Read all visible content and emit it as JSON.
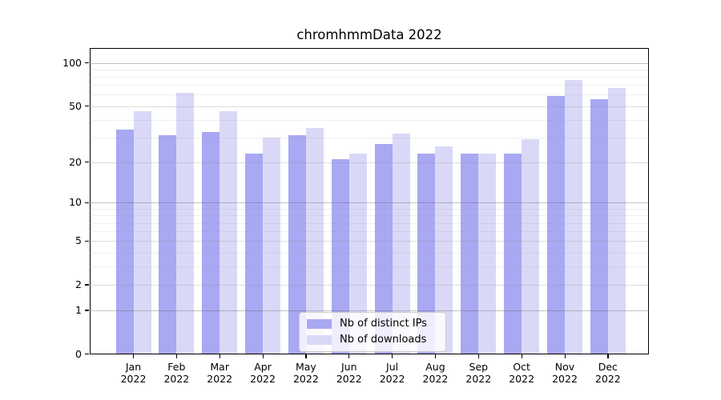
{
  "title": "chromhmmData 2022",
  "legend": {
    "items": [
      {
        "label": "Nb of distinct IPs",
        "color": "#a8a8f3"
      },
      {
        "label": "Nb of downloads",
        "color": "#d9d9f7"
      }
    ]
  },
  "chart_data": {
    "type": "bar",
    "title": "chromhmmData 2022",
    "categories": [
      "Jan",
      "Feb",
      "Mar",
      "Apr",
      "May",
      "Jun",
      "Jul",
      "Aug",
      "Sep",
      "Oct",
      "Nov",
      "Dec"
    ],
    "year": "2022",
    "series": [
      {
        "name": "Nb of distinct IPs",
        "color": "#a8a8f3",
        "values": [
          34,
          31,
          33,
          23,
          31,
          21,
          27,
          23,
          23,
          23,
          59,
          56
        ]
      },
      {
        "name": "Nb of downloads",
        "color": "#d9d9f7",
        "values": [
          46,
          62,
          46,
          30,
          35,
          23,
          32,
          26,
          23,
          29,
          76,
          67
        ]
      }
    ],
    "xlabel": "",
    "ylabel": "",
    "yscale": "log1p",
    "ylim": [
      0,
      126
    ],
    "yticks": [
      0,
      1,
      2,
      5,
      10,
      20,
      50,
      100
    ],
    "major_gridlines": [
      1,
      10,
      100
    ],
    "mid_gridlines": [
      2,
      5,
      20,
      50
    ],
    "minor_gridlines": [
      3,
      4,
      6,
      7,
      8,
      9,
      30,
      40,
      60,
      70,
      80,
      90
    ],
    "grid": "on",
    "legend_position": "lower center"
  }
}
